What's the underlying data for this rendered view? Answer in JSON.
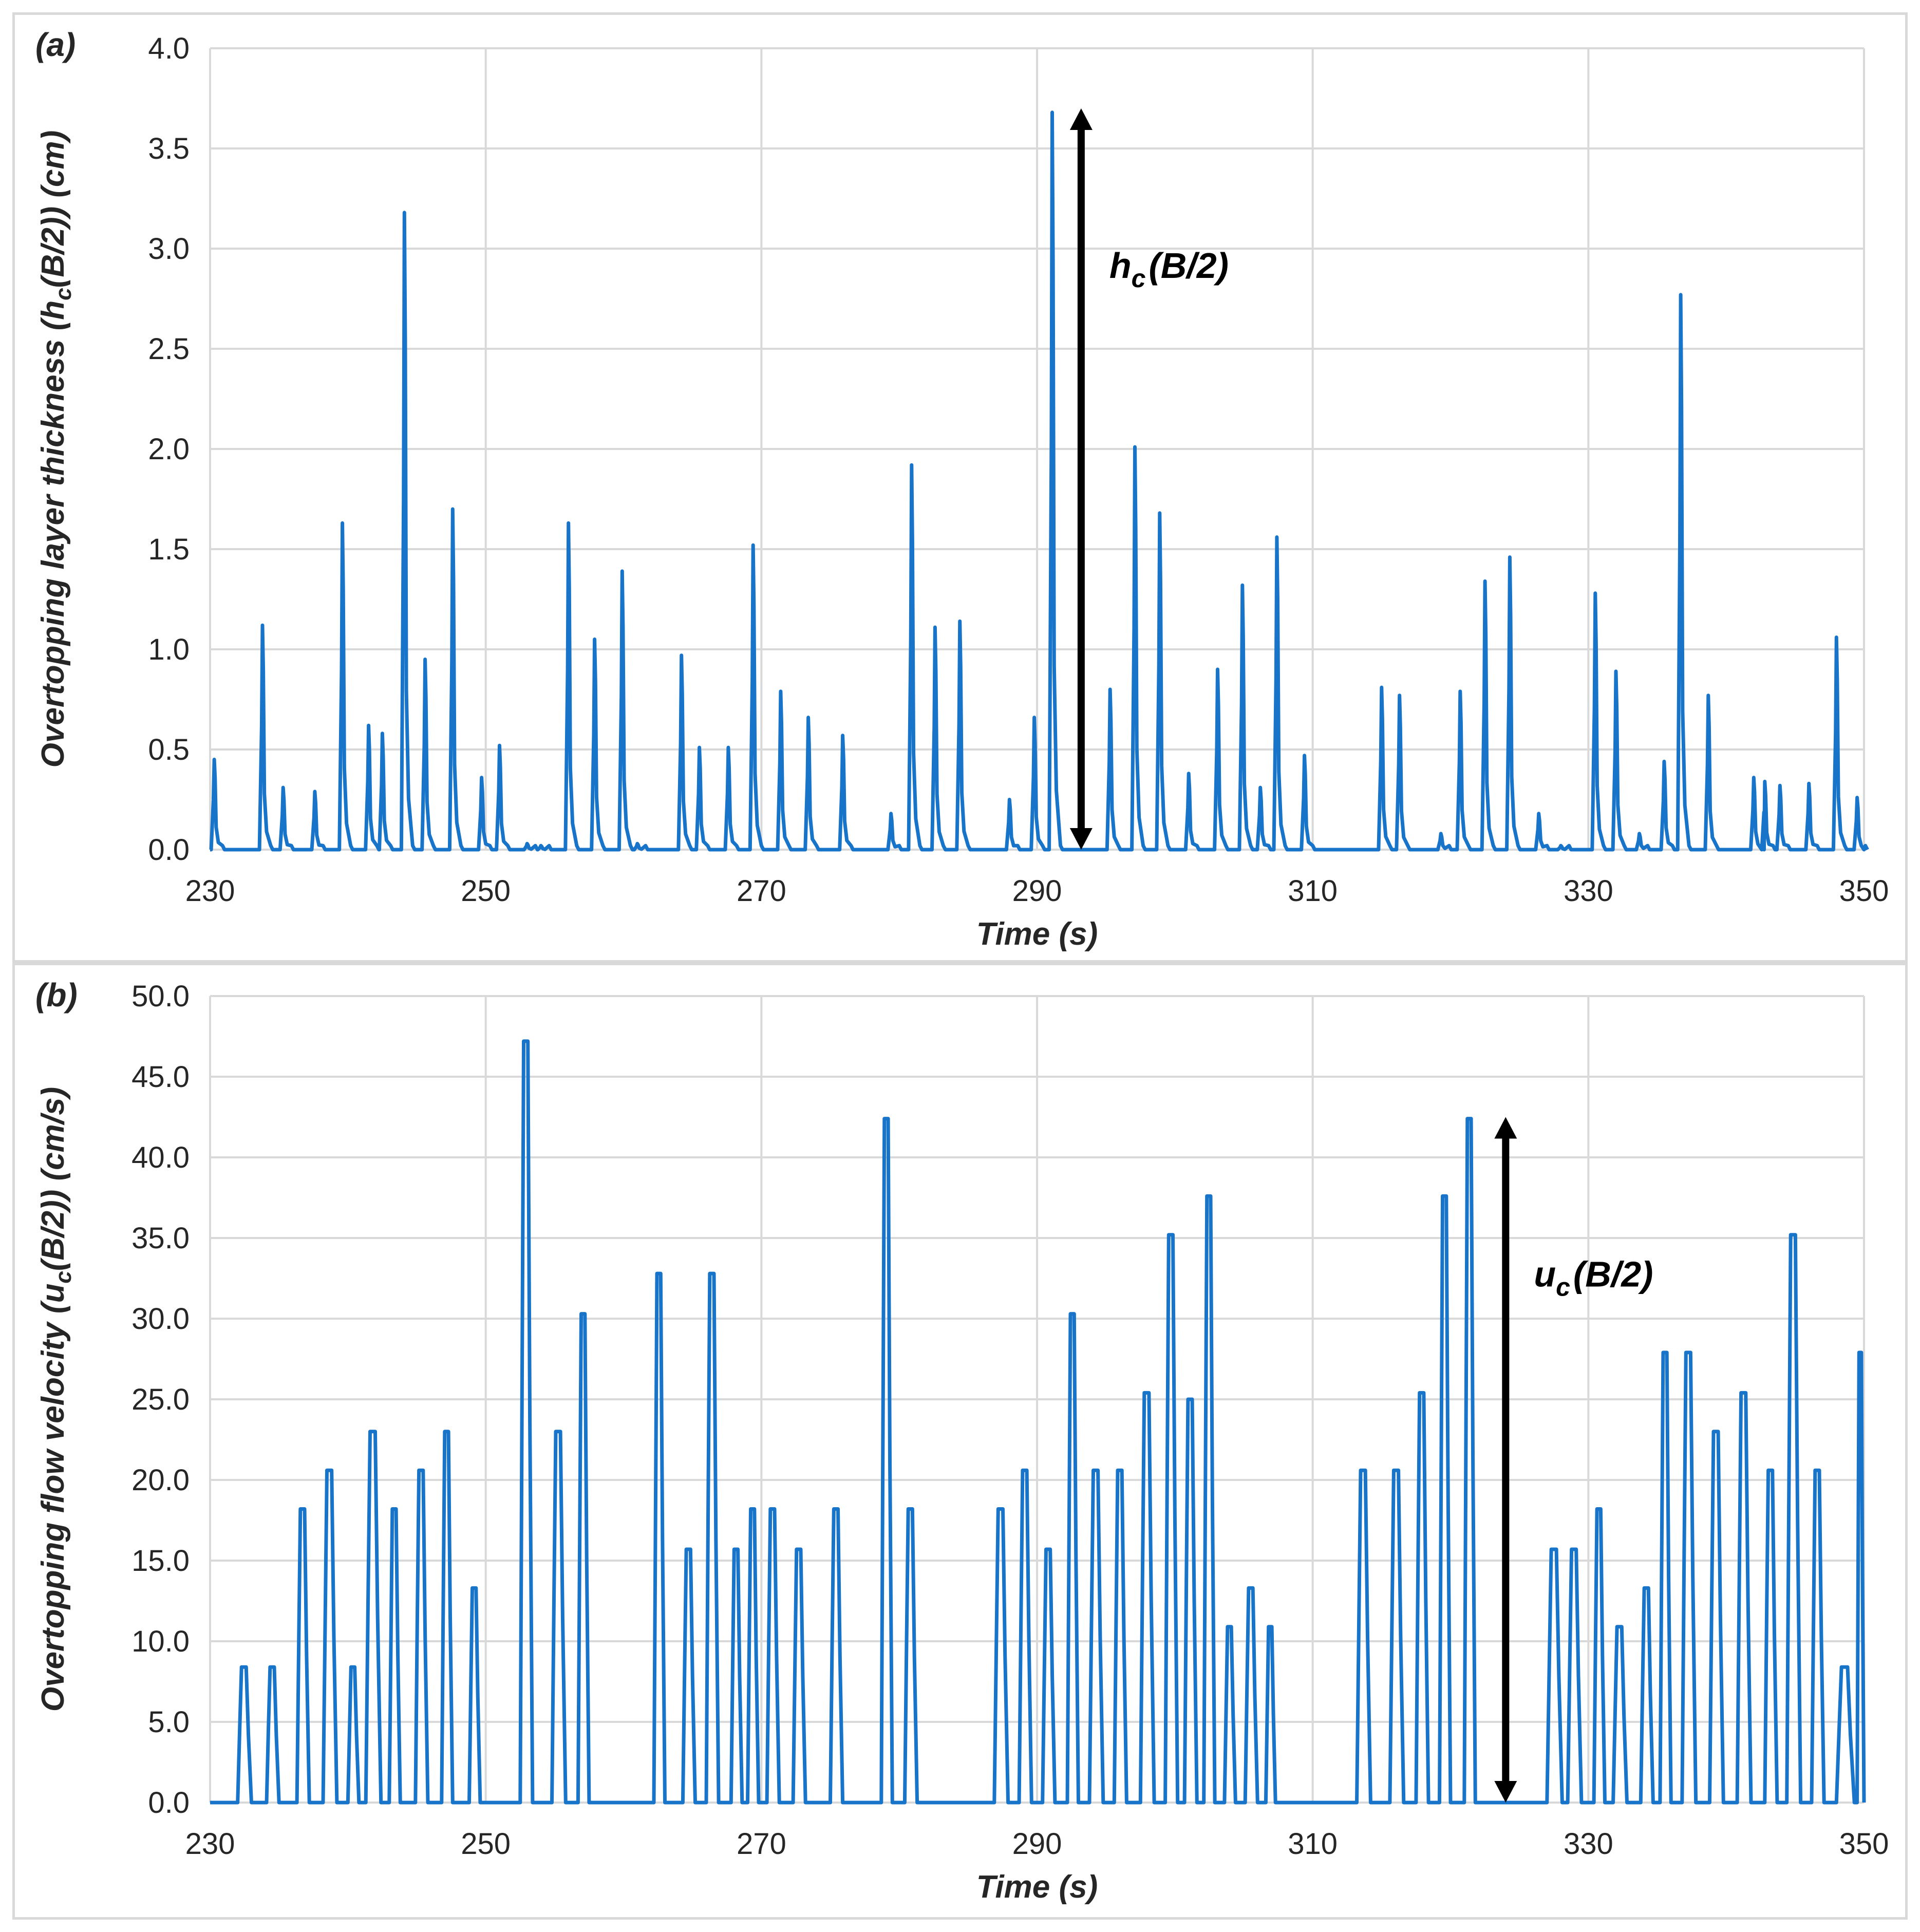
{
  "colors": {
    "series": "#1874c9",
    "grid": "#d9d9d9",
    "text": "#262626",
    "arrow": "#000000"
  },
  "chart_data": [
    {
      "type": "line",
      "panel_label": "(a)",
      "title": "",
      "xlabel": "Time  (s)",
      "ylabel_parts": [
        "Overtopping  layer thickness  (h",
        "c",
        "(B/2)) (cm)"
      ],
      "xlim": [
        230,
        350
      ],
      "ylim": [
        0,
        4.0
      ],
      "xticks": [
        "230",
        "250",
        "270",
        "290",
        "310",
        "330",
        "350"
      ],
      "yticks": [
        "0.0",
        "0.5",
        "1.0",
        "1.5",
        "2.0",
        "2.5",
        "3.0",
        "3.5",
        "4.0"
      ],
      "grid": "vertical and horizontal",
      "annotation": {
        "text_main": "h",
        "text_sub": "c",
        "text_rest": "(B/2)",
        "x": 293.2,
        "y_from": 0.0,
        "y_to": 3.7
      },
      "series": [
        {
          "name": "h_c(B/2)",
          "spikes": [
            [
              230.3,
              0.45
            ],
            [
              233.8,
              1.12
            ],
            [
              235.3,
              0.31
            ],
            [
              237.6,
              0.29
            ],
            [
              239.6,
              1.63
            ],
            [
              241.5,
              0.62
            ],
            [
              242.5,
              0.58
            ],
            [
              244.1,
              3.18
            ],
            [
              245.6,
              0.95
            ],
            [
              247.6,
              1.7
            ],
            [
              249.7,
              0.36
            ],
            [
              251.0,
              0.52
            ],
            [
              253.0,
              0.03
            ],
            [
              254.0,
              0.02
            ],
            [
              256.0,
              1.63
            ],
            [
              257.9,
              1.05
            ],
            [
              259.9,
              1.39
            ],
            [
              261.0,
              0.03
            ],
            [
              264.2,
              0.97
            ],
            [
              265.5,
              0.51
            ],
            [
              267.6,
              0.51
            ],
            [
              269.4,
              1.52
            ],
            [
              271.4,
              0.79
            ],
            [
              273.4,
              0.66
            ],
            [
              275.9,
              0.57
            ],
            [
              279.4,
              0.18
            ],
            [
              280.9,
              1.92
            ],
            [
              282.6,
              1.11
            ],
            [
              284.4,
              1.14
            ],
            [
              288.0,
              0.25
            ],
            [
              289.8,
              0.66
            ],
            [
              291.1,
              3.68
            ],
            [
              295.3,
              0.8
            ],
            [
              297.1,
              2.01
            ],
            [
              298.9,
              1.68
            ],
            [
              301.0,
              0.38
            ],
            [
              303.1,
              0.9
            ],
            [
              304.9,
              1.32
            ],
            [
              306.2,
              0.31
            ],
            [
              307.4,
              1.56
            ],
            [
              309.4,
              0.47
            ],
            [
              315.0,
              0.81
            ],
            [
              316.3,
              0.77
            ],
            [
              319.3,
              0.08
            ],
            [
              320.7,
              0.79
            ],
            [
              322.5,
              1.34
            ],
            [
              324.3,
              1.46
            ],
            [
              326.4,
              0.18
            ],
            [
              328.0,
              0.02
            ],
            [
              330.5,
              1.28
            ],
            [
              332.0,
              0.89
            ],
            [
              333.7,
              0.08
            ],
            [
              335.5,
              0.44
            ],
            [
              336.7,
              2.77
            ],
            [
              338.7,
              0.77
            ],
            [
              342.0,
              0.36
            ],
            [
              342.8,
              0.34
            ],
            [
              343.9,
              0.32
            ],
            [
              346.0,
              0.33
            ],
            [
              348.0,
              1.06
            ],
            [
              349.5,
              0.26
            ]
          ]
        }
      ]
    },
    {
      "type": "line",
      "panel_label": "(b)",
      "title": "",
      "xlabel": "Time  (s)",
      "ylabel_parts": [
        "Overtopping  flow velocity  (u",
        "c",
        "(B/2)) (cm/s)"
      ],
      "xlim": [
        230,
        350
      ],
      "ylim": [
        0,
        50.0
      ],
      "xticks": [
        "230",
        "250",
        "270",
        "290",
        "310",
        "330",
        "350"
      ],
      "yticks": [
        "0.0",
        "5.0",
        "10.0",
        "15.0",
        "20.0",
        "25.0",
        "30.0",
        "35.0",
        "40.0",
        "45.0",
        "50.0"
      ],
      "grid": "vertical and horizontal",
      "annotation": {
        "text_main": "u",
        "text_sub": "c",
        "text_rest": "(B/2)",
        "x": 324.0,
        "y_from": 0.0,
        "y_to": 42.5
      },
      "series": [
        {
          "name": "u_c(B/2)",
          "pulses": [
            [
              232.0,
              233.0,
              8.4
            ],
            [
              234.1,
              235.0,
              8.4
            ],
            [
              236.3,
              237.2,
              18.2
            ],
            [
              238.2,
              239.2,
              20.6
            ],
            [
              240.0,
              240.8,
              8.4
            ],
            [
              241.3,
              242.4,
              23.0
            ],
            [
              243.0,
              243.8,
              18.2
            ],
            [
              244.9,
              245.8,
              20.6
            ],
            [
              246.8,
              247.6,
              23.0
            ],
            [
              248.8,
              249.6,
              13.3
            ],
            [
              252.5,
              253.4,
              47.2
            ],
            [
              254.8,
              255.8,
              23.0
            ],
            [
              256.7,
              257.5,
              30.3
            ],
            [
              262.2,
              263.0,
              32.8
            ],
            [
              264.3,
              265.2,
              15.7
            ],
            [
              266.0,
              266.9,
              32.8
            ],
            [
              267.8,
              268.6,
              15.7
            ],
            [
              269.0,
              269.8,
              18.2
            ],
            [
              270.4,
              271.3,
              18.2
            ],
            [
              272.3,
              273.2,
              15.7
            ],
            [
              275.0,
              275.9,
              18.2
            ],
            [
              278.7,
              279.5,
              42.4
            ],
            [
              280.4,
              281.3,
              18.2
            ],
            [
              286.9,
              287.9,
              18.2
            ],
            [
              288.7,
              289.6,
              20.6
            ],
            [
              290.4,
              291.3,
              15.7
            ],
            [
              292.2,
              293.0,
              30.3
            ],
            [
              293.8,
              294.8,
              20.6
            ],
            [
              295.6,
              296.5,
              20.6
            ],
            [
              297.5,
              298.5,
              25.4
            ],
            [
              299.3,
              300.2,
              35.2
            ],
            [
              300.7,
              301.6,
              25.0
            ],
            [
              302.1,
              302.9,
              37.6
            ],
            [
              303.6,
              304.4,
              10.9
            ],
            [
              305.1,
              306.0,
              13.3
            ],
            [
              306.6,
              307.3,
              10.9
            ],
            [
              313.2,
              314.2,
              20.6
            ],
            [
              315.6,
              316.6,
              20.6
            ],
            [
              317.5,
              318.4,
              25.4
            ],
            [
              319.2,
              320.0,
              37.6
            ],
            [
              321.0,
              321.8,
              42.4
            ],
            [
              327.0,
              328.1,
              15.7
            ],
            [
              328.5,
              329.5,
              15.7
            ],
            [
              330.4,
              331.2,
              18.2
            ],
            [
              331.8,
              332.8,
              10.9
            ],
            [
              333.8,
              334.7,
              13.3
            ],
            [
              335.2,
              336.0,
              27.9
            ],
            [
              336.8,
              337.8,
              27.9
            ],
            [
              338.8,
              339.8,
              23.0
            ],
            [
              340.8,
              341.8,
              25.4
            ],
            [
              342.8,
              343.7,
              20.6
            ],
            [
              344.4,
              345.4,
              35.2
            ],
            [
              346.2,
              347.1,
              20.6
            ],
            [
              348.0,
              349.3,
              8.4
            ],
            [
              349.5,
              350.0,
              27.9
            ]
          ]
        }
      ]
    }
  ]
}
